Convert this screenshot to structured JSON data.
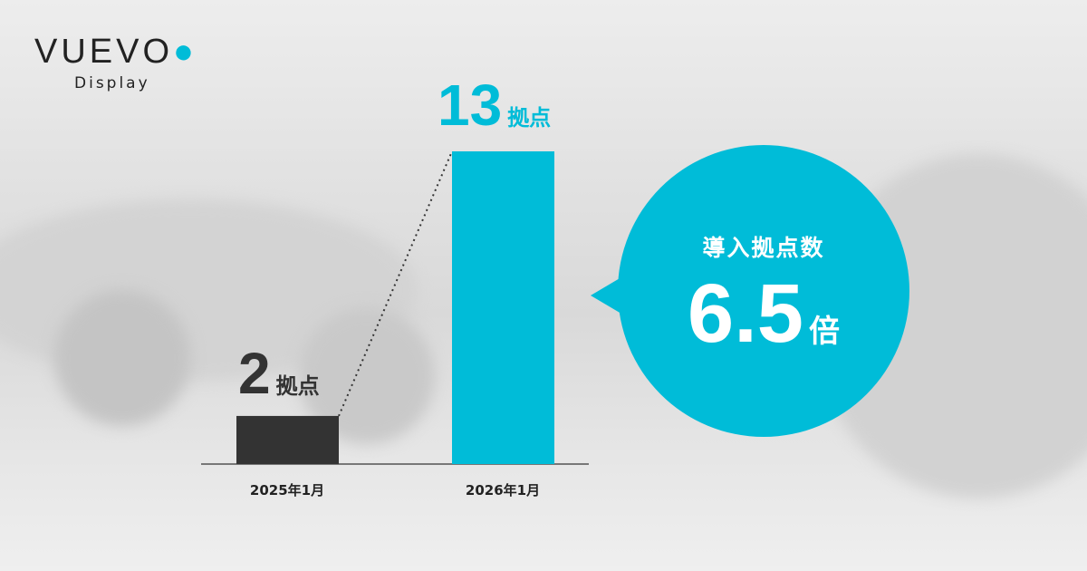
{
  "logo": {
    "brand": "VUEVO",
    "sub": "Display"
  },
  "chart_data": {
    "type": "bar",
    "categories": [
      "2025年1月",
      "2026年1月"
    ],
    "values": [
      2,
      13
    ],
    "unit": "拠点",
    "colors": [
      "#333333",
      "#00bcd8"
    ],
    "ylim": [
      0,
      13
    ],
    "grid": false,
    "value_labels": [
      {
        "num": "2",
        "unit": "拠点"
      },
      {
        "num": "13",
        "unit": "拠点"
      }
    ]
  },
  "callout": {
    "label": "導入拠点数",
    "value": "6.5",
    "unit": "倍",
    "color": "#00bcd8"
  }
}
